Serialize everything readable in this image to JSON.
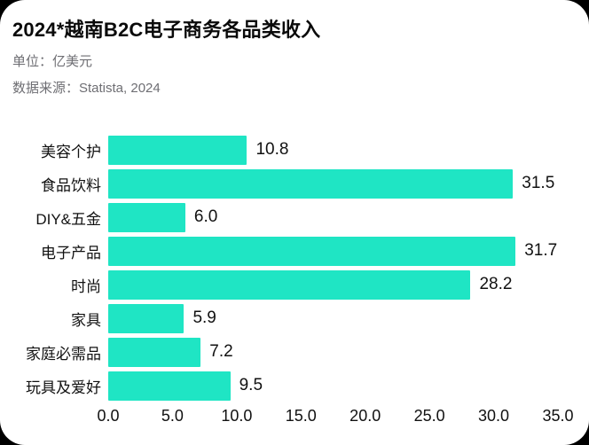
{
  "page": {
    "outer_background": "#000000",
    "card_background": "#ffffff"
  },
  "header": {
    "title": "2024*越南B2C电子商务各品类收入",
    "unit_label": "单位：亿美元",
    "source_label": "数据来源：Statista, 2024"
  },
  "chart_data": {
    "type": "bar",
    "orientation": "horizontal",
    "title": "2024*越南B2C电子商务各品类收入",
    "unit": "亿美元",
    "source": "Statista, 2024",
    "categories": [
      "美容个护",
      "食品饮料",
      "DIY&五金",
      "电子产品",
      "时尚",
      "家具",
      "家庭必需品",
      "玩具及爱好"
    ],
    "values": [
      10.8,
      31.5,
      6.0,
      31.7,
      28.2,
      5.9,
      7.2,
      9.5
    ],
    "value_labels": [
      "10.8",
      "31.5",
      "6.0",
      "31.7",
      "28.2",
      "5.9",
      "7.2",
      "9.5"
    ],
    "xlabel": "",
    "ylabel": "",
    "xlim": [
      0,
      35
    ],
    "x_ticks": [
      0,
      5,
      10,
      15,
      20,
      25,
      30,
      35
    ],
    "x_tick_labels": [
      "0.0",
      "5.0",
      "10.0",
      "15.0",
      "20.0",
      "25.0",
      "30.0",
      "35.0"
    ],
    "bar_color": "#1FE5C4",
    "grid": "off",
    "legend": "none"
  }
}
